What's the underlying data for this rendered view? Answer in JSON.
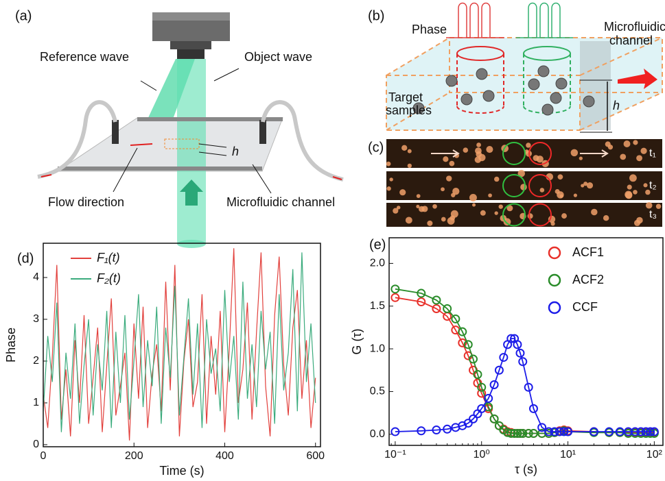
{
  "panels": {
    "a": {
      "label": "(a)",
      "reference": "Reference wave",
      "object": "Object wave",
      "h": "h",
      "flow": "Flow direction",
      "channel": "Microfluidic channel"
    },
    "b": {
      "label": "(b)",
      "phase": "Phase",
      "channel": [
        "Microfluidic",
        "channel"
      ],
      "targets": [
        "Target",
        "samples"
      ],
      "h": "h"
    },
    "c": {
      "label": "(c)",
      "times": [
        "t₁",
        "t₂",
        "t₃"
      ]
    }
  },
  "chart_data": [
    {
      "type": "line",
      "panel_label": "(d)",
      "xlabel": "Time (s)",
      "ylabel": "Phase",
      "x": [
        0,
        10,
        20,
        30,
        40,
        50,
        60,
        70,
        80,
        90,
        100,
        110,
        120,
        130,
        140,
        150,
        160,
        170,
        180,
        190,
        200,
        210,
        220,
        230,
        240,
        250,
        260,
        270,
        280,
        290,
        300,
        310,
        320,
        330,
        340,
        350,
        360,
        370,
        380,
        390,
        400,
        410,
        420,
        430,
        440,
        450,
        460,
        470,
        480,
        490,
        500,
        510,
        520,
        530,
        540,
        550,
        560,
        570,
        580,
        590,
        600
      ],
      "series": [
        {
          "name": "F₁(t)",
          "color": "#e2403c",
          "values": [
            1.2,
            0.4,
            2.1,
            4.3,
            0.6,
            1.8,
            0.2,
            2.5,
            1.0,
            3.1,
            0.5,
            1.6,
            2.8,
            0.3,
            1.9,
            3.5,
            0.7,
            1.4,
            2.2,
            0.1,
            2.9,
            1.1,
            3.3,
            0.4,
            1.7,
            2.4,
            0.8,
            3.9,
            1.3,
            4.3,
            0.2,
            2.0,
            3.0,
            0.9,
            1.5,
            3.6,
            0.5,
            2.6,
            1.2,
            3.2,
            0.3,
            2.3,
            4.7,
            1.0,
            1.8,
            3.4,
            0.6,
            2.7,
            4.6,
            1.4,
            0.2,
            3.1,
            4.5,
            1.9,
            0.7,
            2.8,
            3.7,
            1.1,
            2.5,
            0.4,
            1.6
          ]
        },
        {
          "name": "F₂(t)",
          "color": "#3aab7c",
          "values": [
            0.8,
            2.6,
            1.5,
            3.4,
            0.3,
            2.2,
            1.1,
            2.9,
            0.5,
            1.9,
            3.0,
            0.7,
            2.4,
            1.3,
            3.2,
            0.4,
            2.7,
            1.0,
            3.1,
            0.6,
            2.0,
            3.6,
            0.9,
            2.5,
            1.4,
            3.3,
            0.5,
            2.8,
            1.6,
            3.8,
            0.7,
            2.1,
            3.5,
            1.2,
            2.9,
            0.4,
            3.0,
            1.7,
            2.3,
            0.8,
            3.7,
            1.5,
            2.6,
            0.6,
            3.9,
            1.1,
            2.4,
            0.9,
            3.2,
            1.8,
            2.7,
            0.5,
            3.6,
            1.3,
            2.2,
            4.2,
            0.8,
            4.6,
            1.5,
            2.9,
            1.0
          ]
        }
      ],
      "xlim": [
        0,
        611
      ],
      "xticks": [
        0,
        200,
        400,
        600
      ],
      "ylim": [
        -0.05,
        4.82
      ],
      "yticks": [
        0,
        1,
        2,
        3,
        4
      ],
      "legend": "upper left"
    },
    {
      "type": "scatter",
      "panel_label": "(e)",
      "xlabel": "τ (s)",
      "ylabel": "G (τ)",
      "xscale": "log",
      "x": [
        0.1,
        0.2,
        0.3,
        0.4,
        0.5,
        0.6,
        0.7,
        0.8,
        0.9,
        1,
        1.2,
        1.4,
        1.6,
        1.8,
        2,
        2.2,
        2.4,
        2.6,
        2.8,
        3,
        3.5,
        4,
        5,
        6,
        7,
        8,
        9,
        10,
        20,
        30,
        40,
        50,
        60,
        70,
        80,
        90,
        100
      ],
      "series": [
        {
          "name": "ACF1",
          "color": "#e8302a",
          "values": [
            1.6,
            1.55,
            1.47,
            1.38,
            1.22,
            1.07,
            0.92,
            0.75,
            0.6,
            0.48,
            0.3,
            0.18,
            0.1,
            0.06,
            0.03,
            0.02,
            0.01,
            0.01,
            0.01,
            0.01,
            0.01,
            0.01,
            0.01,
            0.01,
            0.02,
            0.04,
            0.05,
            0.04,
            0.03,
            0.02,
            0.02,
            0.02,
            0.02,
            0.02,
            0.02,
            0.02,
            0.02
          ]
        },
        {
          "name": "ACF2",
          "color": "#2a8c2a",
          "values": [
            1.7,
            1.65,
            1.57,
            1.47,
            1.35,
            1.2,
            1.05,
            0.88,
            0.7,
            0.55,
            0.32,
            0.18,
            0.1,
            0.05,
            0.02,
            0.01,
            0.01,
            0.01,
            0.01,
            0.01,
            0.01,
            0.01,
            0.01,
            0.01,
            0.02,
            0.03,
            0.04,
            0.03,
            0.02,
            0.02,
            0.02,
            0.01,
            0.01,
            0.01,
            0.01,
            0.01,
            0.01
          ]
        },
        {
          "name": "CCF",
          "color": "#1c1ce8",
          "values": [
            0.03,
            0.04,
            0.05,
            0.06,
            0.08,
            0.1,
            0.13,
            0.18,
            0.24,
            0.3,
            0.42,
            0.58,
            0.75,
            0.9,
            1.05,
            1.12,
            1.12,
            1.05,
            0.95,
            0.85,
            0.55,
            0.3,
            0.08,
            0.03,
            0.03,
            0.03,
            0.03,
            0.03,
            0.03,
            0.03,
            0.03,
            0.03,
            0.03,
            0.03,
            0.03,
            0.03,
            0.03
          ]
        }
      ],
      "xlim": [
        0.085,
        126
      ],
      "xticks": [
        {
          "value": 0.1,
          "label": "10⁻¹"
        },
        {
          "value": 1,
          "label": "10⁰"
        },
        {
          "value": 10,
          "label": "10¹"
        },
        {
          "value": 100,
          "label": "10²"
        }
      ],
      "ylim": [
        -0.13,
        2.3
      ],
      "yticks": [
        {
          "value": 0,
          "label": "0.0"
        },
        {
          "value": 0.5,
          "label": "0.5"
        },
        {
          "value": 1,
          "label": "1.0"
        },
        {
          "value": 1.5,
          "label": "1.5"
        },
        {
          "value": 2,
          "label": "2.0"
        }
      ],
      "legend": "upper right"
    }
  ]
}
